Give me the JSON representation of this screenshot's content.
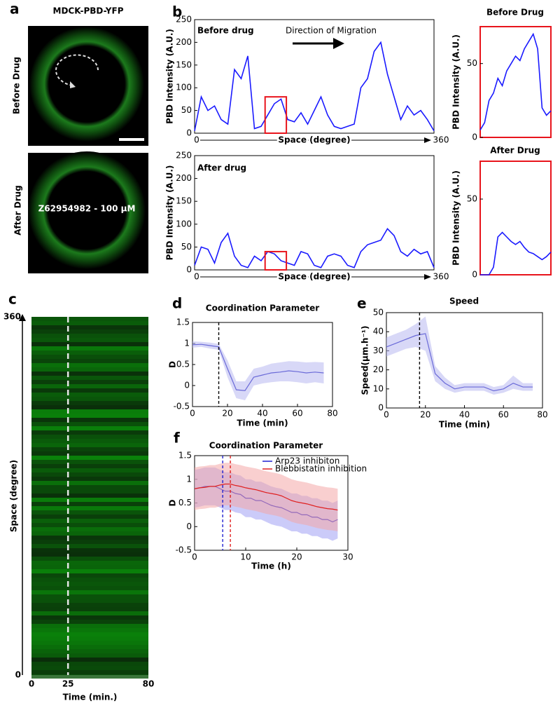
{
  "panel_labels": [
    "a",
    "b",
    "c",
    "d",
    "e",
    "f"
  ],
  "images": {
    "title": "MDCK-PBD-YFP",
    "before_label": "Before Drug",
    "after_label": "After Drug",
    "drug": "Z62954982 - 100 μM"
  },
  "chart_data": [
    {
      "type": "line",
      "title": "Before drug",
      "annotation": "Direction of Migration",
      "xlabel": "Space (degree)",
      "ylabel": "PBD Intensity (A.U.)",
      "x": [
        0,
        10,
        20,
        30,
        40,
        50,
        60,
        70,
        80,
        90,
        100,
        110,
        120,
        130,
        140,
        150,
        160,
        170,
        180,
        190,
        200,
        210,
        220,
        230,
        240,
        250,
        260,
        270,
        280,
        290,
        300,
        310,
        320,
        330,
        340,
        350,
        360
      ],
      "series": [
        {
          "color": "#1a1aff",
          "values": [
            5,
            80,
            50,
            60,
            30,
            20,
            140,
            120,
            170,
            10,
            15,
            40,
            65,
            75,
            30,
            25,
            45,
            20,
            50,
            80,
            40,
            15,
            10,
            15,
            20,
            100,
            120,
            180,
            200,
            130,
            80,
            30,
            60,
            40,
            50,
            30,
            5
          ]
        }
      ],
      "xlim": [
        0,
        360
      ],
      "xticks": [
        0,
        360
      ],
      "ylim": [
        0,
        250
      ],
      "yticks": [
        0,
        50,
        100,
        150,
        200,
        250
      ],
      "highlight": {
        "x": [
          106,
          138
        ],
        "y": [
          0,
          80
        ],
        "color": "#e8141c"
      }
    },
    {
      "type": "line",
      "title": "After drug",
      "xlabel": "Space (degree)",
      "ylabel": "PBD Intensity (A.U.)",
      "x": [
        0,
        10,
        20,
        30,
        40,
        50,
        60,
        70,
        80,
        90,
        100,
        110,
        120,
        130,
        140,
        150,
        160,
        170,
        180,
        190,
        200,
        210,
        220,
        230,
        240,
        250,
        260,
        270,
        280,
        290,
        300,
        310,
        320,
        330,
        340,
        350,
        360
      ],
      "series": [
        {
          "color": "#1a1aff",
          "values": [
            10,
            50,
            45,
            15,
            60,
            80,
            30,
            10,
            5,
            30,
            20,
            40,
            35,
            20,
            15,
            10,
            40,
            35,
            10,
            5,
            30,
            35,
            30,
            10,
            5,
            40,
            55,
            60,
            65,
            90,
            75,
            40,
            30,
            45,
            35,
            40,
            5
          ]
        }
      ],
      "xlim": [
        0,
        360
      ],
      "xticks": [
        0,
        360
      ],
      "ylim": [
        0,
        250
      ],
      "yticks": [
        0,
        50,
        100,
        150,
        200,
        250
      ],
      "highlight": {
        "x": [
          106,
          138
        ],
        "y": [
          0,
          40
        ],
        "color": "#e8141c"
      }
    },
    {
      "type": "line",
      "title": "Before Drug",
      "ylabel": "PBD Intensity (A.U.)",
      "frame_color": "#e8141c",
      "x": [
        106,
        108,
        110,
        112,
        114,
        116,
        118,
        120,
        122,
        124,
        126,
        128,
        130,
        132,
        134,
        136,
        138
      ],
      "series": [
        {
          "color": "#1a1aff",
          "values": [
            5,
            10,
            25,
            30,
            40,
            35,
            45,
            50,
            55,
            52,
            60,
            65,
            70,
            60,
            20,
            15,
            18
          ]
        }
      ],
      "xlim": [
        106,
        138
      ],
      "ylim": [
        0,
        75
      ],
      "yticks": [
        0,
        50
      ]
    },
    {
      "type": "line",
      "title": "After Drug",
      "ylabel": "PBD Intensity (A.U.)",
      "frame_color": "#e8141c",
      "x": [
        106,
        108,
        110,
        112,
        114,
        116,
        118,
        120,
        122,
        124,
        126,
        128,
        130,
        132,
        134,
        136,
        138
      ],
      "series": [
        {
          "color": "#1a1aff",
          "values": [
            0,
            0,
            0,
            5,
            25,
            28,
            25,
            22,
            20,
            22,
            18,
            15,
            14,
            12,
            10,
            12,
            15
          ]
        }
      ],
      "xlim": [
        106,
        138
      ],
      "ylim": [
        0,
        75
      ],
      "yticks": [
        0,
        50
      ]
    },
    {
      "type": "kymograph",
      "xlabel": "Time (min.)",
      "ylabel": "Space (degree)",
      "xlim": [
        0,
        80
      ],
      "xticks": [
        0,
        25,
        80
      ],
      "ylim": [
        0,
        360
      ],
      "yticks": [
        0,
        360
      ],
      "markers": [
        {
          "x": 25,
          "color": "#e6e6e6"
        }
      ]
    },
    {
      "type": "band_line",
      "title": "Coordination Parameter",
      "xlabel": "Time (min)",
      "ylabel": "D",
      "x": [
        0,
        5,
        10,
        15,
        20,
        25,
        30,
        35,
        40,
        45,
        50,
        55,
        60,
        65,
        70,
        75
      ],
      "series": [
        {
          "color": "#6a6ad8",
          "band_color": "#b8b8f0",
          "values": [
            0.97,
            0.98,
            0.95,
            0.92,
            0.4,
            -0.1,
            -0.12,
            0.2,
            0.25,
            0.3,
            0.32,
            0.35,
            0.33,
            0.3,
            0.32,
            0.3
          ],
          "lower": [
            0.9,
            0.92,
            0.88,
            0.85,
            0.2,
            -0.3,
            -0.35,
            0.0,
            0.05,
            0.08,
            0.1,
            0.1,
            0.08,
            0.05,
            0.08,
            0.05
          ],
          "upper": [
            1.05,
            1.04,
            1.02,
            0.99,
            0.6,
            0.1,
            0.1,
            0.4,
            0.45,
            0.52,
            0.55,
            0.58,
            0.57,
            0.55,
            0.56,
            0.55
          ]
        }
      ],
      "xlim": [
        0,
        80
      ],
      "xticks": [
        0,
        20,
        40,
        60,
        80
      ],
      "ylim": [
        -0.5,
        1.5
      ],
      "yticks": [
        -0.5,
        0,
        0.5,
        1,
        1.5
      ],
      "markers": [
        {
          "x": 15,
          "color": "#000"
        }
      ]
    },
    {
      "type": "band_line",
      "title": "Speed",
      "xlabel": "Time (min)",
      "ylabel": "Speed(μm.h⁻¹)",
      "x": [
        0,
        5,
        10,
        15,
        20,
        25,
        30,
        35,
        40,
        45,
        50,
        55,
        60,
        65,
        70,
        75
      ],
      "series": [
        {
          "color": "#6a6ad8",
          "band_color": "#b8b8f0",
          "values": [
            32,
            34,
            36,
            38,
            39,
            18,
            13,
            10,
            11,
            11,
            11,
            9,
            10,
            13,
            11,
            11
          ],
          "lower": [
            27,
            29,
            31,
            32,
            30,
            14,
            10,
            8,
            9,
            9,
            9,
            7,
            8,
            10,
            9,
            9
          ],
          "upper": [
            37,
            39,
            41,
            44,
            48,
            22,
            16,
            12,
            13,
            13,
            13,
            11,
            12,
            17,
            13,
            13
          ]
        }
      ],
      "xlim": [
        0,
        80
      ],
      "xticks": [
        0,
        20,
        40,
        60,
        80
      ],
      "ylim": [
        0,
        50
      ],
      "yticks": [
        0,
        10,
        20,
        30,
        40,
        50
      ],
      "markers": [
        {
          "x": 17,
          "color": "#000"
        }
      ]
    },
    {
      "type": "band_line",
      "title": "Coordination Parameter",
      "xlabel": "Time (h)",
      "ylabel": "D",
      "legend": "upper-right",
      "x": [
        0,
        1,
        2,
        3,
        4,
        5,
        6,
        7,
        8,
        9,
        10,
        11,
        12,
        13,
        14,
        15,
        16,
        17,
        18,
        19,
        20,
        21,
        22,
        23,
        24,
        25,
        26,
        27,
        28
      ],
      "series": [
        {
          "name": "Arp23 inhibiton",
          "color": "#2020d0",
          "band_color": "#a0a0f4",
          "values": [
            0.8,
            0.82,
            0.85,
            0.85,
            0.85,
            0.8,
            0.75,
            0.75,
            0.7,
            0.68,
            0.6,
            0.6,
            0.55,
            0.55,
            0.5,
            0.45,
            0.42,
            0.4,
            0.35,
            0.3,
            0.3,
            0.25,
            0.25,
            0.2,
            0.2,
            0.15,
            0.15,
            0.1,
            0.15
          ],
          "lower": [
            0.4,
            0.42,
            0.45,
            0.45,
            0.45,
            0.4,
            0.35,
            0.35,
            0.3,
            0.28,
            0.2,
            0.2,
            0.15,
            0.15,
            0.1,
            0.05,
            0.02,
            0.0,
            -0.05,
            -0.1,
            -0.1,
            -0.15,
            -0.15,
            -0.2,
            -0.2,
            -0.25,
            -0.25,
            -0.3,
            -0.25
          ],
          "upper": [
            1.2,
            1.22,
            1.25,
            1.25,
            1.25,
            1.2,
            1.15,
            1.15,
            1.1,
            1.08,
            1.0,
            1.0,
            0.95,
            0.95,
            0.9,
            0.85,
            0.82,
            0.8,
            0.75,
            0.7,
            0.7,
            0.65,
            0.65,
            0.6,
            0.6,
            0.55,
            0.55,
            0.5,
            0.55
          ]
        },
        {
          "name": "Blebbistatin inhibition",
          "color": "#e02020",
          "band_color": "#f4a8a8",
          "values": [
            0.8,
            0.82,
            0.83,
            0.85,
            0.85,
            0.88,
            0.9,
            0.9,
            0.87,
            0.85,
            0.82,
            0.8,
            0.78,
            0.75,
            0.72,
            0.7,
            0.68,
            0.65,
            0.6,
            0.55,
            0.52,
            0.5,
            0.48,
            0.45,
            0.42,
            0.4,
            0.38,
            0.37,
            0.35
          ],
          "lower": [
            0.35,
            0.37,
            0.38,
            0.4,
            0.4,
            0.43,
            0.45,
            0.45,
            0.42,
            0.4,
            0.37,
            0.35,
            0.33,
            0.3,
            0.27,
            0.25,
            0.23,
            0.2,
            0.15,
            0.1,
            0.07,
            0.05,
            0.03,
            0.0,
            -0.03,
            -0.05,
            -0.07,
            -0.08,
            -0.1
          ],
          "upper": [
            1.25,
            1.27,
            1.28,
            1.3,
            1.3,
            1.33,
            1.35,
            1.35,
            1.32,
            1.3,
            1.27,
            1.25,
            1.23,
            1.2,
            1.17,
            1.15,
            1.13,
            1.1,
            1.05,
            1.0,
            0.97,
            0.95,
            0.93,
            0.9,
            0.87,
            0.85,
            0.83,
            0.82,
            0.8
          ]
        }
      ],
      "xlim": [
        0,
        30
      ],
      "xticks": [
        0,
        10,
        20,
        30
      ],
      "ylim": [
        -0.5,
        1.5
      ],
      "yticks": [
        -0.5,
        0,
        0.5,
        1,
        1.5
      ],
      "markers": [
        {
          "x": 5.5,
          "color": "#2020d0"
        },
        {
          "x": 7,
          "color": "#e02020"
        }
      ]
    }
  ]
}
